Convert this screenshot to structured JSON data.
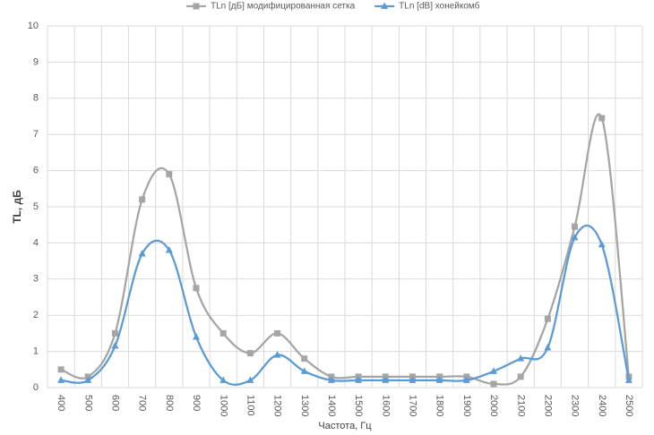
{
  "chart_data": {
    "type": "line",
    "x_label": "Частота, Гц",
    "y_label": "TL, дБ",
    "categories": [
      "400",
      "500",
      "600",
      "700",
      "800",
      "900",
      "1000",
      "1100",
      "1200",
      "1300",
      "1400",
      "1500",
      "1600",
      "1700",
      "1800",
      "1900",
      "2000",
      "2100",
      "2200",
      "2300",
      "2400",
      "2500"
    ],
    "series": [
      {
        "name": "TLn [дБ] модифицированная сетка",
        "color": "#a5a5a5",
        "marker": "square",
        "values": [
          0.5,
          0.3,
          1.5,
          5.2,
          5.9,
          2.75,
          1.5,
          0.95,
          1.5,
          0.8,
          0.3,
          0.3,
          0.3,
          0.3,
          0.3,
          0.3,
          0.1,
          0.3,
          1.9,
          4.45,
          7.45,
          0.3
        ]
      },
      {
        "name": "TLn [dB] хонейкомб",
        "color": "#5b9bd5",
        "marker": "triangle",
        "values": [
          0.2,
          0.2,
          1.15,
          3.7,
          3.8,
          1.4,
          0.2,
          0.2,
          0.9,
          0.45,
          0.2,
          0.2,
          0.2,
          0.2,
          0.2,
          0.2,
          0.45,
          0.8,
          1.1,
          4.15,
          3.95,
          0.2
        ]
      }
    ],
    "ylim": [
      0,
      10
    ],
    "yticks": [
      0,
      1,
      2,
      3,
      4,
      5,
      6,
      7,
      8,
      9,
      10
    ],
    "grid": true,
    "smooth": true,
    "legend": "top"
  }
}
